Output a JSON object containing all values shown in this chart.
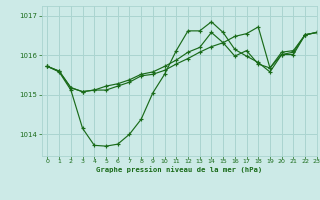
{
  "title": "Graphe pression niveau de la mer (hPa)",
  "bg_color": "#cceae7",
  "grid_color": "#aad4d0",
  "line_color": "#1a6b1a",
  "xlim": [
    -0.5,
    23
  ],
  "ylim": [
    1013.45,
    1017.25
  ],
  "yticks": [
    1014,
    1015,
    1016,
    1017
  ],
  "xticks": [
    0,
    1,
    2,
    3,
    4,
    5,
    6,
    7,
    8,
    9,
    10,
    11,
    12,
    13,
    14,
    15,
    16,
    17,
    18,
    19,
    20,
    21,
    22,
    23
  ],
  "s1_y": [
    1015.72,
    1015.58,
    1015.12,
    1014.15,
    1013.72,
    1013.7,
    1013.75,
    1014.0,
    1014.38,
    1015.05,
    1015.52,
    1016.12,
    1016.62,
    1016.62,
    1016.85,
    1016.58,
    1016.15,
    1015.98,
    1015.82,
    1015.58,
    1016.02,
    1016.02,
    1016.52,
    1016.58
  ],
  "s2_y": [
    1015.72,
    1015.6,
    1015.18,
    1015.08,
    1015.12,
    1015.12,
    1015.22,
    1015.32,
    1015.48,
    1015.52,
    1015.62,
    1015.78,
    1015.92,
    1016.08,
    1016.22,
    1016.32,
    1016.48,
    1016.55,
    1016.72,
    1015.68,
    1016.08,
    1016.12,
    1016.52,
    1016.58
  ],
  "s3_y": [
    1015.72,
    1015.6,
    1015.18,
    1015.08,
    1015.12,
    1015.22,
    1015.28,
    1015.38,
    1015.52,
    1015.58,
    1015.72,
    1015.88,
    1016.08,
    1016.2,
    1016.58,
    1016.32,
    1015.98,
    1016.12,
    1015.78,
    1015.68,
    1016.02,
    1016.08,
    1016.52,
    1016.58
  ],
  "figsize": [
    3.2,
    2.0
  ],
  "dpi": 100
}
